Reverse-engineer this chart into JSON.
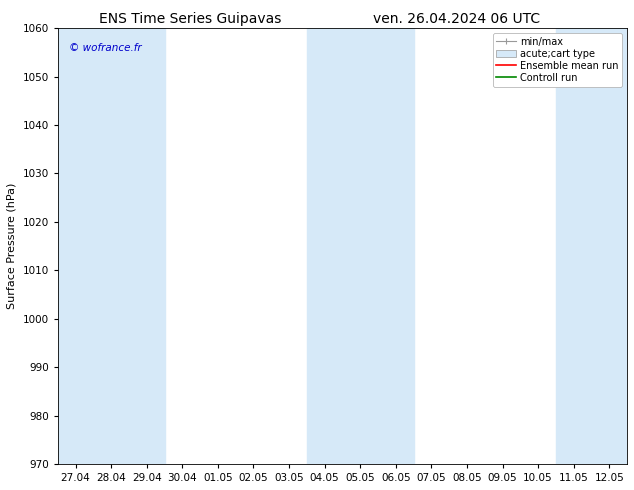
{
  "title_left": "ENS Time Series Guipavas",
  "title_right": "ven. 26.04.2024 06 UTC",
  "ylabel": "Surface Pressure (hPa)",
  "ylim": [
    970,
    1060
  ],
  "yticks": [
    970,
    980,
    990,
    1000,
    1010,
    1020,
    1030,
    1040,
    1050,
    1060
  ],
  "x_tick_labels": [
    "27.04",
    "28.04",
    "29.04",
    "30.04",
    "01.05",
    "02.05",
    "03.05",
    "04.05",
    "05.05",
    "06.05",
    "07.05",
    "08.05",
    "09.05",
    "10.05",
    "11.05",
    "12.05"
  ],
  "watermark": "© wofrance.fr",
  "watermark_color": "#0000cc",
  "bg_color": "#ffffff",
  "plot_bg_color": "#ffffff",
  "band_color": "#d6e9f8",
  "legend_entries": [
    {
      "label": "min/max",
      "type": "errorbar",
      "color": "#aaaaaa"
    },
    {
      "label": "acute;cart type",
      "type": "fill",
      "color": "#d6e9f8"
    },
    {
      "label": "Ensemble mean run",
      "type": "line",
      "color": "#ff0000"
    },
    {
      "label": "Controll run",
      "type": "line",
      "color": "#008800"
    }
  ],
  "title_fontsize": 10,
  "tick_fontsize": 7.5,
  "ylabel_fontsize": 8,
  "watermark_fontsize": 7.5,
  "legend_fontsize": 7
}
